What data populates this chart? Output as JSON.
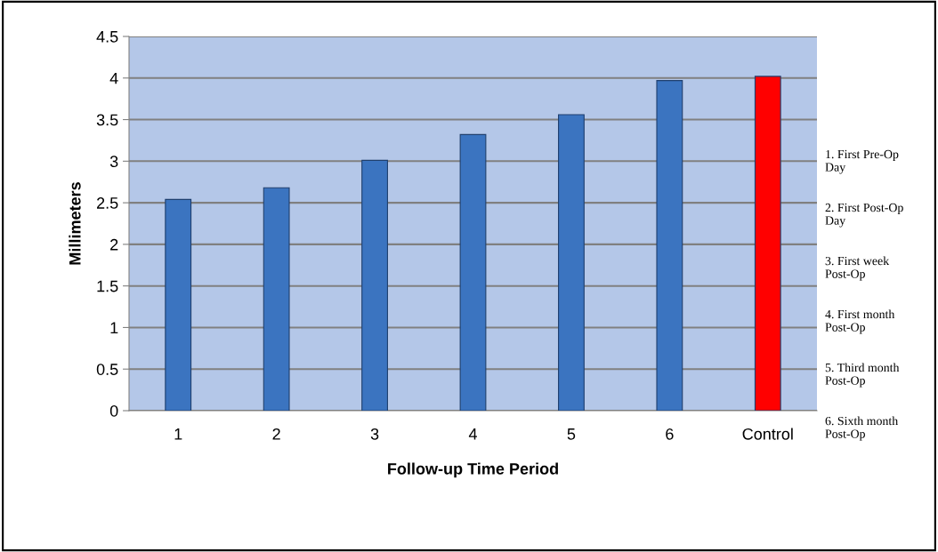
{
  "chart_data": {
    "type": "bar",
    "xlabel": "Follow-up Time Period",
    "ylabel": "Millimeters",
    "categories": [
      "1",
      "2",
      "3",
      "4",
      "5",
      "6",
      "Control"
    ],
    "values": [
      2.54,
      2.68,
      3.01,
      3.32,
      3.56,
      3.97,
      4.02
    ],
    "colors": [
      "#3b74c0",
      "#3b74c0",
      "#3b74c0",
      "#3b74c0",
      "#3b74c0",
      "#3b74c0",
      "#ff0000"
    ],
    "ylim": [
      0,
      4.5
    ],
    "yticks": [
      0,
      0.5,
      1,
      1.5,
      2,
      2.5,
      3,
      3.5,
      4,
      4.5
    ],
    "grid": "y",
    "legend": false,
    "annotations": [
      "1. First Pre-Op\nDay",
      "2. First Post-Op\nDay",
      "3. First week\nPost-Op",
      "4. First month\nPost-Op",
      "5. Third month\nPost-Op",
      "6. Sixth month\nPost-Op"
    ]
  }
}
